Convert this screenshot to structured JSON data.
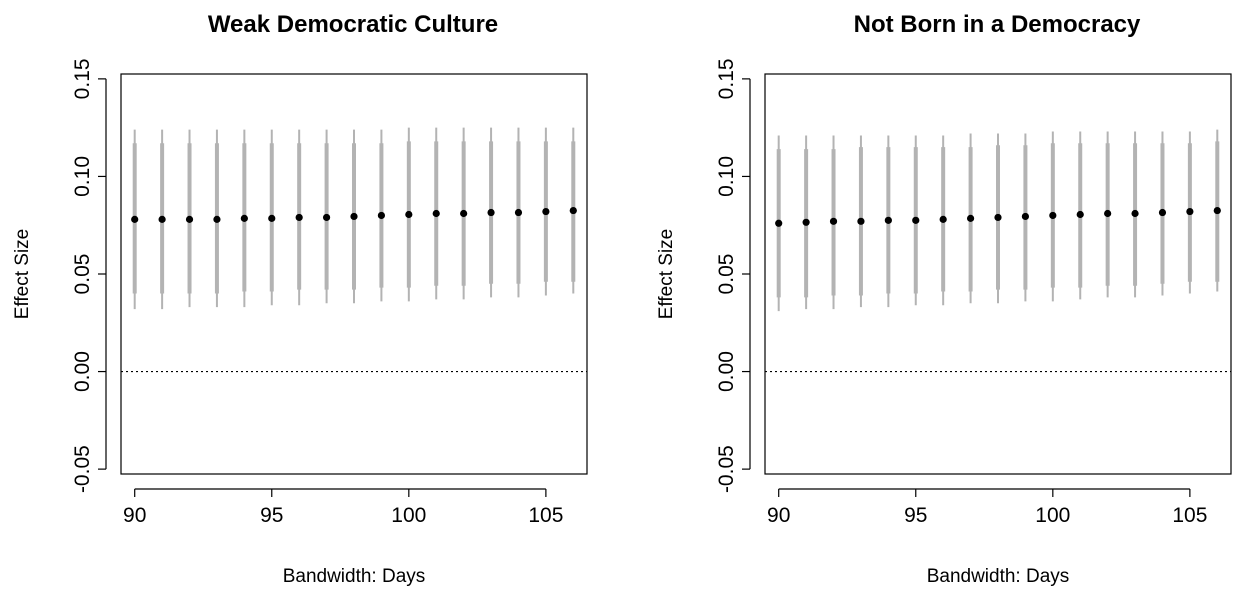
{
  "chart_data": [
    {
      "type": "scatter",
      "title": "Weak Democratic Culture",
      "xlabel": "Bandwidth: Days",
      "ylabel": "Effect Size",
      "xlim": [
        89.5,
        106.5
      ],
      "ylim": [
        -0.0525,
        0.1525
      ],
      "xticks": [
        90,
        95,
        100,
        105
      ],
      "xtick_labels": [
        "90",
        "95",
        "100",
        "105"
      ],
      "yticks": [
        -0.05,
        0.0,
        0.05,
        0.1,
        0.15
      ],
      "ytick_labels": [
        "-0.05",
        "0.00",
        "0.05",
        "0.10",
        "0.15"
      ],
      "reference_line": {
        "y": 0,
        "style": "dotted"
      },
      "grid": false,
      "colors": {
        "points": "#000000",
        "ci": "#b3b3b3",
        "reference": "#000000"
      },
      "x": [
        90,
        91,
        92,
        93,
        94,
        95,
        96,
        97,
        98,
        99,
        100,
        101,
        102,
        103,
        104,
        105,
        106
      ],
      "series": [
        {
          "y": [
            0.078,
            0.078,
            0.078,
            0.078,
            0.0785,
            0.0785,
            0.079,
            0.079,
            0.0795,
            0.08,
            0.0805,
            0.081,
            0.081,
            0.0815,
            0.0815,
            0.082,
            0.0825
          ],
          "ci95_low": [
            0.032,
            0.032,
            0.033,
            0.033,
            0.033,
            0.034,
            0.034,
            0.035,
            0.035,
            0.036,
            0.036,
            0.037,
            0.037,
            0.038,
            0.038,
            0.039,
            0.04
          ],
          "ci95_high": [
            0.124,
            0.124,
            0.124,
            0.124,
            0.124,
            0.124,
            0.124,
            0.124,
            0.124,
            0.124,
            0.125,
            0.125,
            0.125,
            0.125,
            0.125,
            0.125,
            0.125
          ],
          "ci90_low": [
            0.04,
            0.04,
            0.04,
            0.04,
            0.041,
            0.041,
            0.042,
            0.042,
            0.042,
            0.043,
            0.043,
            0.044,
            0.044,
            0.045,
            0.045,
            0.046,
            0.046
          ],
          "ci90_high": [
            0.117,
            0.117,
            0.117,
            0.117,
            0.117,
            0.117,
            0.117,
            0.117,
            0.117,
            0.117,
            0.118,
            0.118,
            0.118,
            0.118,
            0.118,
            0.118,
            0.118
          ]
        }
      ]
    },
    {
      "type": "scatter",
      "title": "Not Born in a Democracy",
      "xlabel": "Bandwidth: Days",
      "ylabel": "Effect Size",
      "xlim": [
        89.5,
        106.5
      ],
      "ylim": [
        -0.0525,
        0.1525
      ],
      "xticks": [
        90,
        95,
        100,
        105
      ],
      "xtick_labels": [
        "90",
        "95",
        "100",
        "105"
      ],
      "yticks": [
        -0.05,
        0.0,
        0.05,
        0.1,
        0.15
      ],
      "ytick_labels": [
        "-0.05",
        "0.00",
        "0.05",
        "0.10",
        "0.15"
      ],
      "reference_line": {
        "y": 0,
        "style": "dotted"
      },
      "grid": false,
      "colors": {
        "points": "#000000",
        "ci": "#b3b3b3",
        "reference": "#000000"
      },
      "x": [
        90,
        91,
        92,
        93,
        94,
        95,
        96,
        97,
        98,
        99,
        100,
        101,
        102,
        103,
        104,
        105,
        106
      ],
      "series": [
        {
          "y": [
            0.076,
            0.0765,
            0.077,
            0.077,
            0.0775,
            0.0775,
            0.078,
            0.0785,
            0.079,
            0.0795,
            0.08,
            0.0805,
            0.081,
            0.081,
            0.0815,
            0.082,
            0.0825
          ],
          "ci95_low": [
            0.031,
            0.032,
            0.032,
            0.033,
            0.033,
            0.034,
            0.034,
            0.035,
            0.035,
            0.036,
            0.036,
            0.037,
            0.038,
            0.038,
            0.039,
            0.04,
            0.041
          ],
          "ci95_high": [
            0.121,
            0.121,
            0.121,
            0.121,
            0.121,
            0.121,
            0.121,
            0.122,
            0.122,
            0.122,
            0.123,
            0.123,
            0.123,
            0.123,
            0.123,
            0.123,
            0.124
          ],
          "ci90_low": [
            0.038,
            0.038,
            0.039,
            0.039,
            0.04,
            0.04,
            0.041,
            0.041,
            0.042,
            0.042,
            0.043,
            0.043,
            0.044,
            0.044,
            0.045,
            0.046,
            0.046
          ],
          "ci90_high": [
            0.114,
            0.114,
            0.114,
            0.115,
            0.115,
            0.115,
            0.115,
            0.115,
            0.116,
            0.116,
            0.117,
            0.117,
            0.117,
            0.117,
            0.117,
            0.117,
            0.118
          ]
        }
      ]
    }
  ]
}
